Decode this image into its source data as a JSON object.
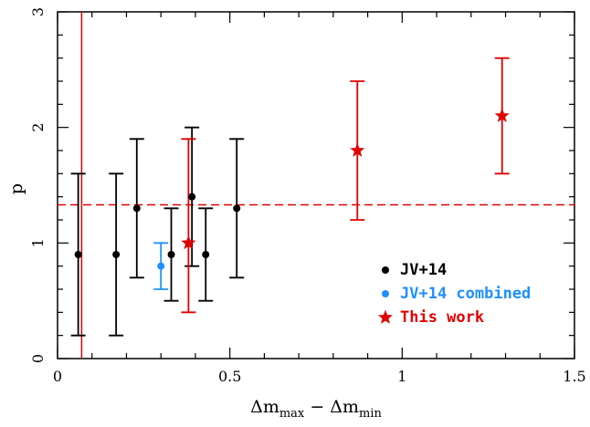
{
  "chart_data": {
    "type": "scatter",
    "xlabel": {
      "prefix": "Δm",
      "sub1": "max",
      "middle": " − Δm",
      "sub2": "min"
    },
    "ylabel": "p",
    "xlim": [
      0,
      1.5
    ],
    "ylim": [
      0,
      3
    ],
    "xticks": [
      "0",
      "0.5",
      "1",
      "1.5"
    ],
    "yticks": [
      "0",
      "1",
      "2",
      "3"
    ],
    "grid": false,
    "legend_position": "lower-right",
    "colors": {
      "jv14": "#000000",
      "jv14_combined": "#1e90ff",
      "this_work": "#e00000"
    },
    "series": [
      {
        "name": "JV+14",
        "marker": "circle",
        "color": "#000000",
        "points": [
          {
            "x": 0.06,
            "y": 0.9,
            "ylow": 0.2,
            "yhigh": 1.6
          },
          {
            "x": 0.17,
            "y": 0.9,
            "ylow": 0.2,
            "yhigh": 1.6
          },
          {
            "x": 0.23,
            "y": 1.3,
            "ylow": 0.7,
            "yhigh": 1.9
          },
          {
            "x": 0.33,
            "y": 0.9,
            "ylow": 0.5,
            "yhigh": 1.3
          },
          {
            "x": 0.39,
            "y": 1.4,
            "ylow": 0.8,
            "yhigh": 2.0
          },
          {
            "x": 0.43,
            "y": 0.9,
            "ylow": 0.5,
            "yhigh": 1.3
          },
          {
            "x": 0.52,
            "y": 1.3,
            "ylow": 0.7,
            "yhigh": 1.9
          }
        ]
      },
      {
        "name": "JV+14 combined",
        "marker": "circle",
        "color": "#1e90ff",
        "points": [
          {
            "x": 0.3,
            "y": 0.8,
            "ylow": 0.6,
            "yhigh": 1.0
          }
        ]
      },
      {
        "name": "This work",
        "marker": "star",
        "color": "#e00000",
        "points": [
          {
            "x": 0.38,
            "y": 1.0,
            "ylow": 0.4,
            "yhigh": 1.9
          },
          {
            "x": 0.87,
            "y": 1.8,
            "ylow": 1.2,
            "yhigh": 2.4
          },
          {
            "x": 1.29,
            "y": 2.1,
            "ylow": 1.6,
            "yhigh": 2.6
          }
        ]
      }
    ],
    "reference_lines": [
      {
        "type": "horizontal",
        "y": 1.33,
        "style": "dashed",
        "color": "#e00000"
      },
      {
        "type": "vertical",
        "x": 0.07,
        "style": "solid",
        "color": "#e00000"
      }
    ]
  }
}
